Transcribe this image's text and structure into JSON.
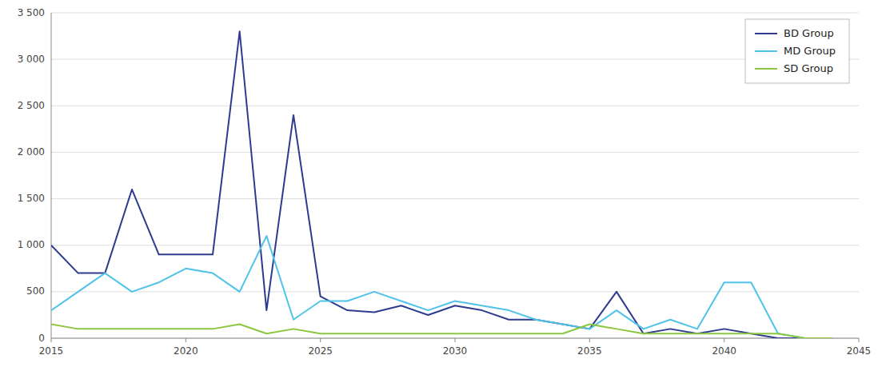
{
  "chart_data": {
    "type": "line",
    "x": [
      2015,
      2016,
      2017,
      2018,
      2019,
      2020,
      2021,
      2022,
      2023,
      2024,
      2025,
      2026,
      2027,
      2028,
      2029,
      2030,
      2031,
      2032,
      2033,
      2034,
      2035,
      2036,
      2037,
      2038,
      2039,
      2040,
      2041,
      2042,
      2043,
      2044
    ],
    "series": [
      {
        "name": "BD Group",
        "color": "#2E3B8E",
        "values": [
          1000,
          700,
          700,
          1600,
          900,
          900,
          900,
          3300,
          300,
          2400,
          450,
          300,
          280,
          350,
          250,
          350,
          300,
          200,
          200,
          150,
          100,
          500,
          50,
          100,
          50,
          100,
          50,
          0,
          0,
          0
        ]
      },
      {
        "name": "MD Group",
        "color": "#4FC3E8",
        "values": [
          300,
          500,
          700,
          500,
          600,
          750,
          700,
          500,
          1100,
          200,
          400,
          400,
          500,
          400,
          300,
          400,
          350,
          300,
          200,
          150,
          100,
          300,
          100,
          200,
          100,
          600,
          600,
          50,
          0,
          0
        ]
      },
      {
        "name": "SD Group",
        "color": "#8DC63F",
        "values": [
          150,
          100,
          100,
          100,
          100,
          100,
          100,
          150,
          50,
          100,
          50,
          50,
          50,
          50,
          50,
          50,
          50,
          50,
          50,
          50,
          150,
          100,
          50,
          50,
          50,
          50,
          50,
          50,
          0,
          0
        ]
      }
    ],
    "xlim": [
      2015,
      2045
    ],
    "xticks": [
      2015,
      2020,
      2025,
      2030,
      2035,
      2040,
      2045
    ],
    "ylim": [
      0,
      3500
    ],
    "yticks": [
      0,
      500,
      {
        "value": 1000,
        "label": "1 000"
      },
      {
        "value": 1500,
        "label": "1 500"
      },
      {
        "value": 2000,
        "label": "2 000"
      },
      {
        "value": 2500,
        "label": "2 500"
      },
      {
        "value": 3000,
        "label": "3 000"
      },
      {
        "value": 3500,
        "label": "3 500"
      }
    ],
    "grid": true,
    "legend": "upper right"
  }
}
